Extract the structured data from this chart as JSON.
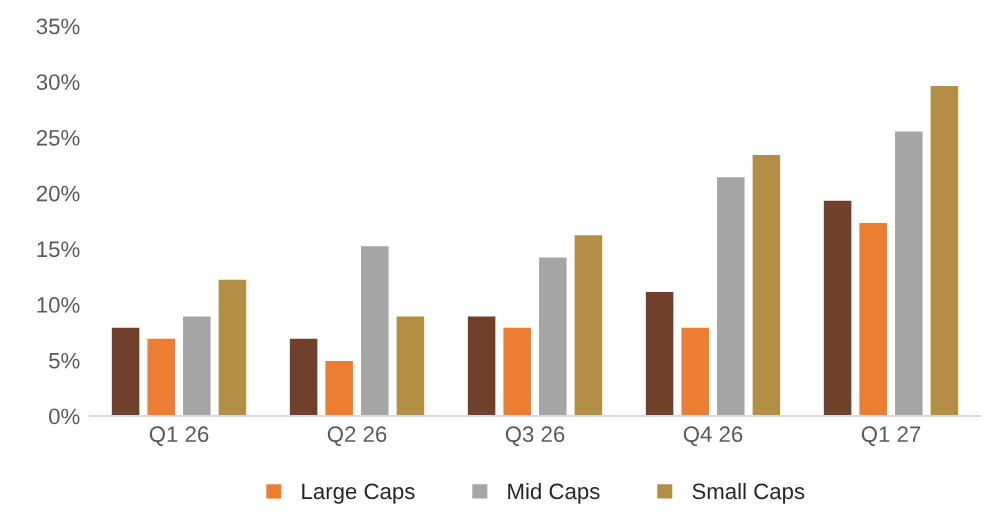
{
  "chart_data": {
    "type": "bar",
    "categories": [
      "Q1 26",
      "Q2 26",
      "Q3 26",
      "Q4 26",
      "Q1 27"
    ],
    "series": [
      {
        "color": "#70402a",
        "values": [
          8,
          7,
          9,
          11.2,
          19.4
        ]
      },
      {
        "name": "Large Caps",
        "color": "#ed7d31",
        "values": [
          7,
          5,
          8,
          8,
          17.4
        ]
      },
      {
        "name": "Mid Caps",
        "color": "#a5a5a5",
        "values": [
          9,
          15.3,
          14.3,
          21.5,
          25.6
        ]
      },
      {
        "name": "Small Caps",
        "color": "#b38e45",
        "values": [
          12.3,
          9,
          16.3,
          23.5,
          29.7
        ]
      }
    ],
    "ylim": [
      0,
      35
    ],
    "yticks": [
      {
        "value": 0,
        "label": "0%"
      },
      {
        "value": 5,
        "label": "5%"
      },
      {
        "value": 10,
        "label": "10%"
      },
      {
        "value": 15,
        "label": "15%"
      },
      {
        "value": 20,
        "label": "20%"
      },
      {
        "value": 25,
        "label": "25%"
      },
      {
        "value": 30,
        "label": "30%"
      },
      {
        "value": 35,
        "label": "35%"
      }
    ],
    "grid": false,
    "legend": "bottom"
  }
}
